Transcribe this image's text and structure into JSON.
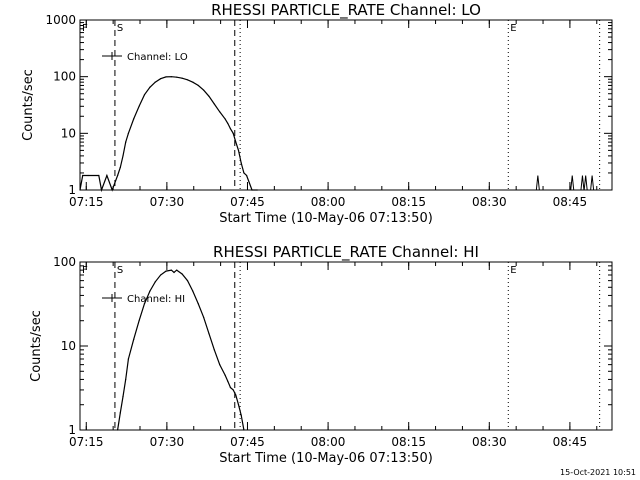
{
  "chart_data": [
    {
      "type": "line",
      "title": "RHESSI PARTICLE_RATE Channel: LO",
      "xlabel": "Start Time (10-May-06 07:13:50)",
      "ylabel": "Counts/sec",
      "yscale": "log",
      "xlim_minutes": [
        0,
        99
      ],
      "ylim": [
        1,
        1000
      ],
      "x_tick_labels": [
        "07:15",
        "07:30",
        "07:45",
        "08:00",
        "08:15",
        "08:30",
        "08:45"
      ],
      "y_tick_labels": [
        "1",
        "10",
        "100",
        "1000"
      ],
      "legend_label": "Channel: LO",
      "series": [
        {
          "name": "Channel: LO",
          "x_minutes": [
            0,
            0.5,
            1.5,
            3.5,
            4,
            5,
            6,
            7,
            7.5,
            8,
            8.5,
            9,
            10,
            11,
            12,
            13,
            14,
            15,
            16,
            17,
            18,
            19,
            20,
            21,
            22,
            23,
            24,
            25,
            26,
            27,
            27.5,
            28,
            28.5,
            29,
            29.5,
            30,
            30.5,
            31,
            32,
            33
          ],
          "y_values": [
            1,
            1.8,
            1.8,
            1.8,
            1,
            1.8,
            1,
            1.8,
            2.5,
            4,
            7,
            10,
            18,
            30,
            48,
            65,
            80,
            92,
            99,
            100,
            98,
            94,
            88,
            80,
            70,
            58,
            45,
            33,
            24,
            18,
            15,
            12,
            10,
            7,
            5,
            3,
            2,
            1.8,
            1,
            1
          ]
        }
      ],
      "markers": [
        {
          "label": "F",
          "minute": 0,
          "style": "none"
        },
        {
          "label": "S",
          "minute": 6.5,
          "style": "dashed"
        },
        {
          "label": "",
          "minute": 28.8,
          "style": "dashed"
        },
        {
          "label": "",
          "minute": 29.8,
          "style": "dotted"
        },
        {
          "label": "E",
          "minute": 79.7,
          "style": "dotted"
        },
        {
          "label": "",
          "minute": 96.7,
          "style": "dotted"
        }
      ],
      "spikes_minutes": [
        85.2,
        91.6,
        93.5,
        94.1,
        95.3
      ]
    },
    {
      "type": "line",
      "title": "RHESSI PARTICLE_RATE Channel: HI",
      "xlabel": "Start Time (10-May-06 07:13:50)",
      "ylabel": "Counts/sec",
      "yscale": "log",
      "xlim_minutes": [
        0,
        99
      ],
      "ylim": [
        1,
        100
      ],
      "x_tick_labels": [
        "07:15",
        "07:30",
        "07:45",
        "08:00",
        "08:15",
        "08:30",
        "08:45"
      ],
      "y_tick_labels": [
        "1",
        "10",
        "100"
      ],
      "legend_label": "Channel: HI",
      "series": [
        {
          "name": "Channel: HI",
          "x_minutes": [
            7,
            7.5,
            8,
            8.5,
            9,
            10,
            11,
            12,
            13,
            14,
            15,
            16,
            17,
            17.5,
            18,
            19,
            20,
            21,
            22,
            23,
            24,
            25,
            26,
            27,
            27.5,
            28,
            28.5,
            29,
            29.5,
            30,
            30.5
          ],
          "y_values": [
            1,
            1.6,
            2.5,
            4,
            7,
            12,
            20,
            32,
            45,
            58,
            70,
            78,
            80,
            75,
            80,
            72,
            60,
            45,
            32,
            22,
            14,
            9,
            6,
            4.5,
            3.8,
            3.2,
            3,
            2.6,
            2,
            1.5,
            1
          ]
        }
      ],
      "markers": [
        {
          "label": "F",
          "minute": 0,
          "style": "none"
        },
        {
          "label": "S",
          "minute": 6.5,
          "style": "dashed"
        },
        {
          "label": "",
          "minute": 28.8,
          "style": "dashed"
        },
        {
          "label": "",
          "minute": 29.8,
          "style": "dotted"
        },
        {
          "label": "E",
          "minute": 79.7,
          "style": "dotted"
        },
        {
          "label": "",
          "minute": 96.7,
          "style": "dotted"
        }
      ],
      "spikes_minutes": []
    }
  ],
  "footer": {
    "timestamp": "15-Oct-2021 10:51"
  }
}
